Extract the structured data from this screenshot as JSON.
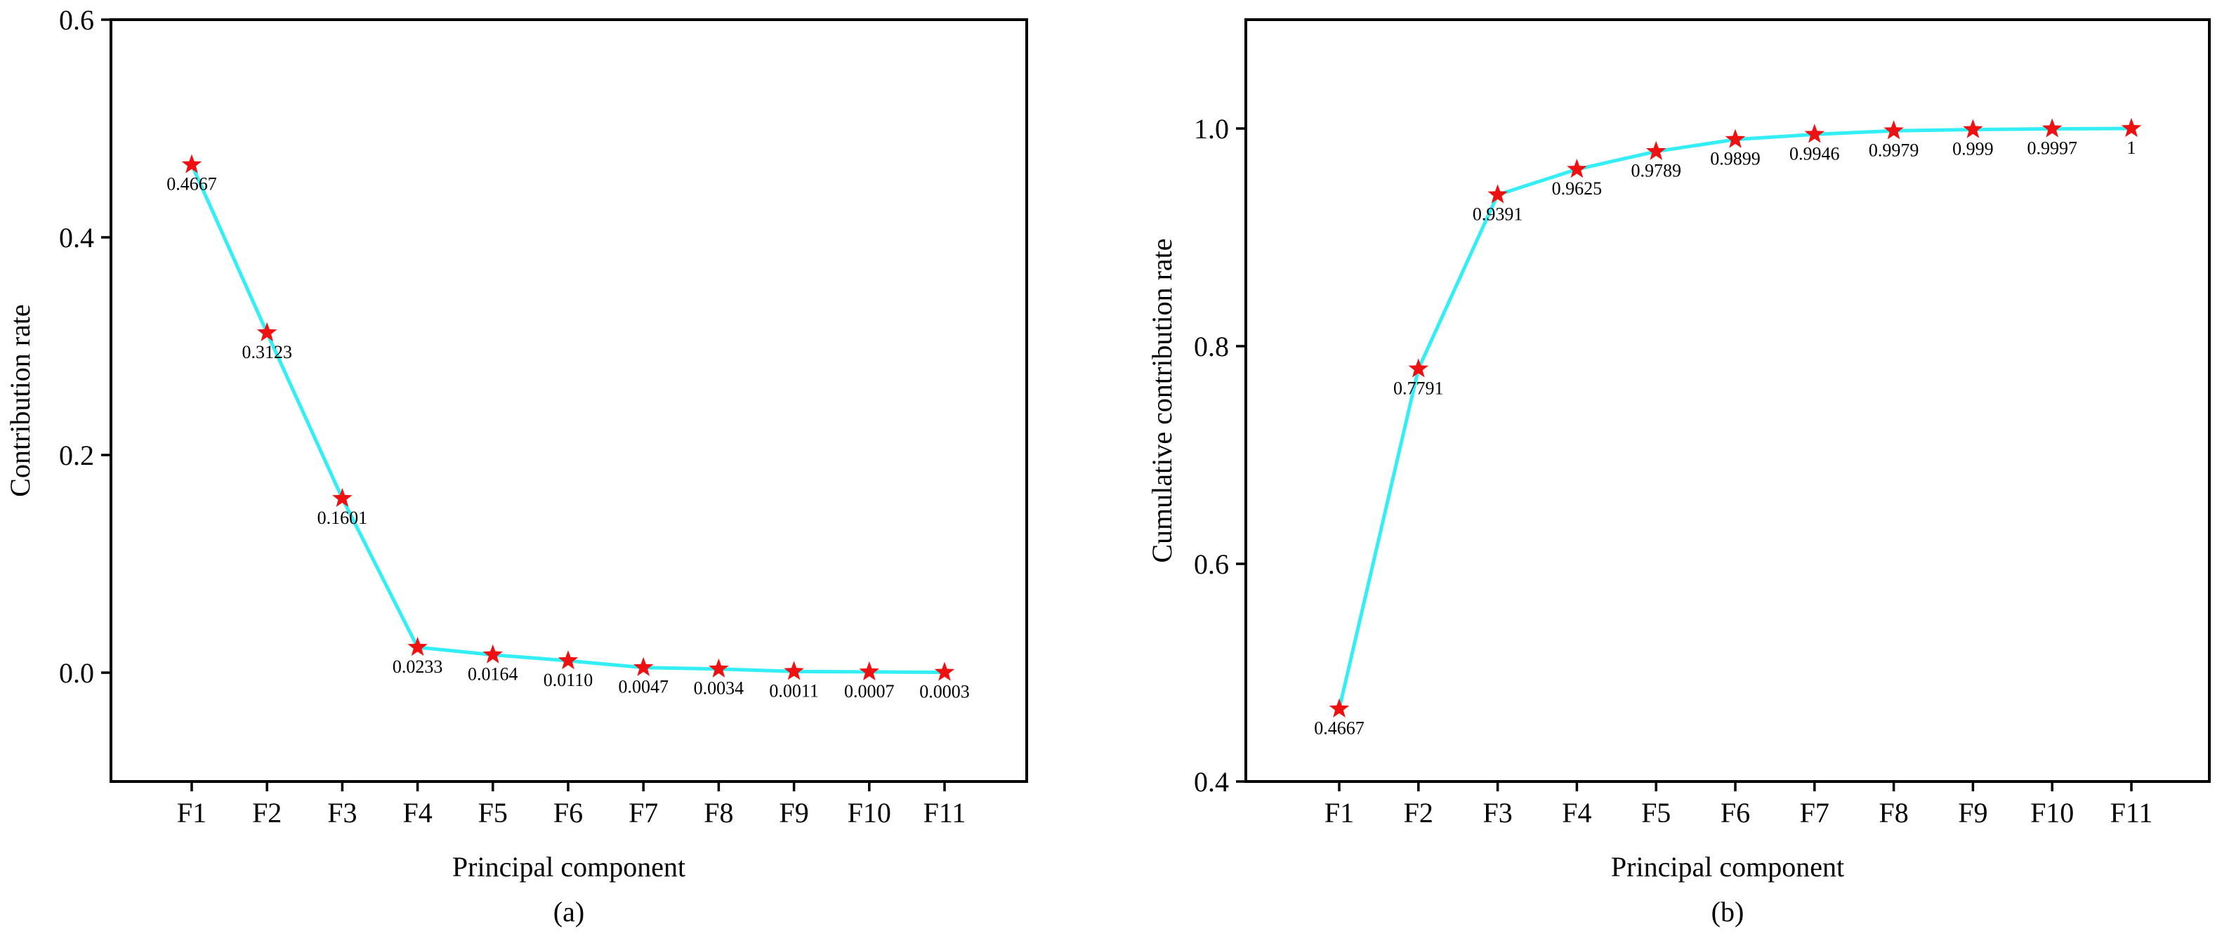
{
  "chart_data": [
    {
      "id": "a",
      "type": "line",
      "panel_label": "(a)",
      "title": "",
      "xlabel": "Principal component",
      "ylabel": "Contribution rate",
      "categories": [
        "F1",
        "F2",
        "F3",
        "F4",
        "F5",
        "F6",
        "F7",
        "F8",
        "F9",
        "F10",
        "F11"
      ],
      "values": [
        0.4667,
        0.3123,
        0.1601,
        0.0233,
        0.0164,
        0.011,
        0.0047,
        0.0034,
        0.0011,
        0.0007,
        0.0003
      ],
      "data_labels": [
        "0.4667",
        "0.3123",
        "0.1601",
        "0.0233",
        "0.0164",
        "0.0110",
        "0.0047",
        "0.0034",
        "0.0011",
        "0.0007",
        "0.0003"
      ],
      "ylim": [
        -0.1,
        0.6
      ],
      "yticks": [
        0.0,
        0.2,
        0.4,
        0.6
      ],
      "ytick_labels": [
        "0.0",
        "0.2",
        "0.4",
        "0.6"
      ],
      "line_color": "#33eef5",
      "marker": "star",
      "marker_color": "#ee1111",
      "grid": false,
      "legend": "none"
    },
    {
      "id": "b",
      "type": "line",
      "panel_label": "(b)",
      "title": "",
      "xlabel": "Principal component",
      "ylabel": "Cumulative contribution rate",
      "categories": [
        "F1",
        "F2",
        "F3",
        "F4",
        "F5",
        "F6",
        "F7",
        "F8",
        "F9",
        "F10",
        "F11"
      ],
      "values": [
        0.4667,
        0.7791,
        0.9391,
        0.9625,
        0.9789,
        0.9899,
        0.9946,
        0.9979,
        0.999,
        0.9997,
        1
      ],
      "data_labels": [
        "0.4667",
        "0.7791",
        "0.9391",
        "0.9625",
        "0.9789",
        "0.9899",
        "0.9946",
        "0.9979",
        "0.999",
        "0.9997",
        "1"
      ],
      "ylim": [
        0.4,
        1.1
      ],
      "yticks": [
        0.4,
        0.6,
        0.8,
        1.0
      ],
      "ytick_labels": [
        "0.4",
        "0.6",
        "0.8",
        "1.0"
      ],
      "line_color": "#33eef5",
      "marker": "star",
      "marker_color": "#ee1111",
      "grid": false,
      "legend": "none"
    }
  ]
}
